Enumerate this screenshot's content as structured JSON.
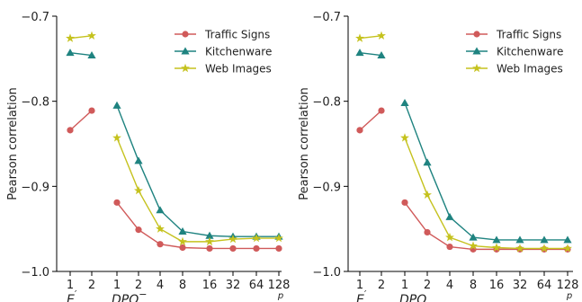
{
  "chart_data": [
    {
      "type": "line",
      "ylabel": "Pearson correlation",
      "ylim": [
        -1.0,
        -0.7
      ],
      "yticks": [
        "-1.0",
        "-0.9",
        "-0.8",
        "-0.7"
      ],
      "xticks": [
        "1",
        "2",
        "1",
        "2",
        "4",
        "8",
        "16",
        "32",
        "64",
        "128"
      ],
      "x_extra_label": "p",
      "groups": [
        {
          "label": "E",
          "sup": "′",
          "sub": "p"
        },
        {
          "label": "DPQ",
          "sup": "−",
          "sub": "p"
        }
      ],
      "legend_position": "top-right",
      "series": [
        {
          "name": "Traffic Signs",
          "color": "#d05a5a",
          "marker": "circle",
          "part1": [
            -0.834,
            -0.811
          ],
          "part2": [
            -0.919,
            -0.951,
            -0.968,
            -0.972,
            -0.973,
            -0.973,
            -0.973,
            -0.973
          ]
        },
        {
          "name": "Kitchenware",
          "color": "#1f8380",
          "marker": "triangle",
          "part1": [
            -0.743,
            -0.746
          ],
          "part2": [
            -0.805,
            -0.87,
            -0.928,
            -0.953,
            -0.958,
            -0.959,
            -0.959,
            -0.959
          ]
        },
        {
          "name": "Web Images",
          "color": "#c5c21e",
          "marker": "star",
          "part1": [
            -0.726,
            -0.723
          ],
          "part2": [
            -0.843,
            -0.905,
            -0.95,
            -0.965,
            -0.965,
            -0.962,
            -0.961,
            -0.961
          ]
        }
      ]
    },
    {
      "type": "line",
      "ylabel": "Pearson correlation",
      "ylim": [
        -1.0,
        -0.7
      ],
      "yticks": [
        "-1.0",
        "-0.9",
        "-0.8",
        "-0.7"
      ],
      "xticks": [
        "1",
        "2",
        "1",
        "2",
        "4",
        "8",
        "16",
        "32",
        "64",
        "128"
      ],
      "x_extra_label": "p",
      "groups": [
        {
          "label": "E",
          "sup": "′",
          "sub": "p"
        },
        {
          "label": "DPQ",
          "sup": "",
          "sub": "p"
        }
      ],
      "legend_position": "top-right",
      "series": [
        {
          "name": "Traffic Signs",
          "color": "#d05a5a",
          "marker": "circle",
          "part1": [
            -0.834,
            -0.811
          ],
          "part2": [
            -0.919,
            -0.954,
            -0.971,
            -0.974,
            -0.974,
            -0.974,
            -0.974,
            -0.974
          ]
        },
        {
          "name": "Kitchenware",
          "color": "#1f8380",
          "marker": "triangle",
          "part1": [
            -0.743,
            -0.746
          ],
          "part2": [
            -0.802,
            -0.872,
            -0.936,
            -0.96,
            -0.963,
            -0.963,
            -0.963,
            -0.963
          ]
        },
        {
          "name": "Web Images",
          "color": "#c5c21e",
          "marker": "star",
          "part1": [
            -0.726,
            -0.723
          ],
          "part2": [
            -0.843,
            -0.91,
            -0.96,
            -0.97,
            -0.972,
            -0.973,
            -0.973,
            -0.973
          ]
        }
      ]
    }
  ]
}
